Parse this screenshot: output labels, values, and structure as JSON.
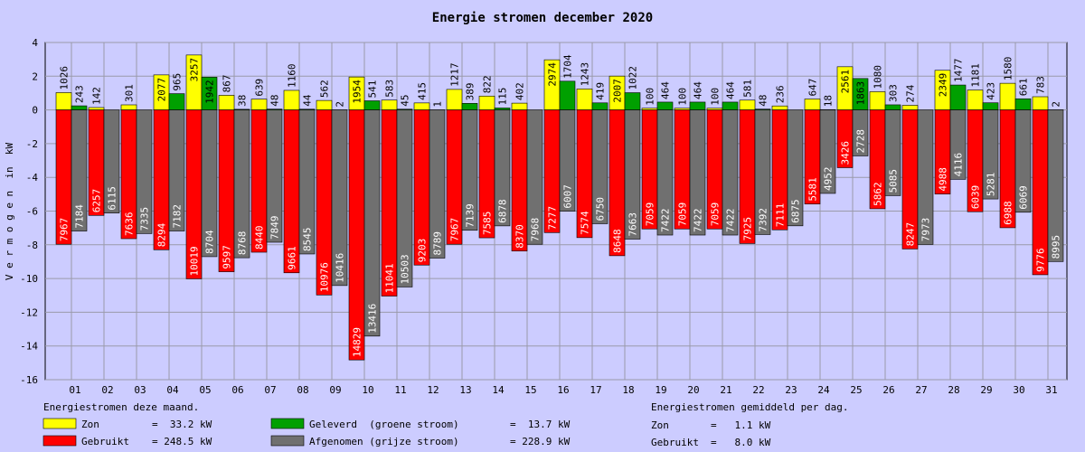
{
  "chart_data": {
    "type": "bar",
    "title": "Energie stromen december 2020",
    "y_label": "V e r m o g e n  in  kW",
    "categories": [
      "01",
      "02",
      "03",
      "04",
      "05",
      "06",
      "07",
      "08",
      "09",
      "10",
      "11",
      "12",
      "13",
      "14",
      "15",
      "16",
      "17",
      "18",
      "19",
      "20",
      "21",
      "22",
      "23",
      "24",
      "25",
      "26",
      "27",
      "28",
      "29",
      "30",
      "31"
    ],
    "series": [
      {
        "name": "Zon",
        "color": "#ffff00",
        "total": "=  33.2 kW",
        "values": [
          1.026,
          0.142,
          0.301,
          2.077,
          3.257,
          0.867,
          0.639,
          1.16,
          0.562,
          1.954,
          0.583,
          0.415,
          1.217,
          0.822,
          0.402,
          2.974,
          1.243,
          2.007,
          0.1,
          0.1,
          0.1,
          0.581,
          0.236,
          0.647,
          2.561,
          1.08,
          0.274,
          2.349,
          1.181,
          1.58,
          0.783
        ],
        "value_labels": [
          "1026",
          "142",
          "301",
          "2077",
          "3257",
          "867",
          "639",
          "1160",
          "562",
          "1954",
          "583",
          "415",
          "1217",
          "822",
          "402",
          "2974",
          "1243",
          "2007",
          "100",
          "100",
          "100",
          "581",
          "236",
          "647",
          "2561",
          "1080",
          "274",
          "2349",
          "1181",
          "1580",
          "783"
        ]
      },
      {
        "name": "Gebruikt",
        "color": "#ff0000",
        "total": "= 248.5 kW",
        "values": [
          -7.967,
          -6.257,
          -7.636,
          -8.294,
          -10.019,
          -9.597,
          -8.44,
          -9.661,
          -10.976,
          -14.829,
          -11.041,
          -9.203,
          -7.967,
          -7.585,
          -8.37,
          -7.277,
          -7.574,
          -8.648,
          -7.059,
          -7.059,
          -7.059,
          -7.925,
          -7.111,
          -5.581,
          -3.426,
          -5.862,
          -8.247,
          -4.988,
          -6.039,
          -6.988,
          -9.776
        ],
        "value_labels": [
          "7967",
          "6257",
          "7636",
          "8294",
          "10019",
          "9597",
          "8440",
          "9661",
          "10976",
          "14829",
          "11041",
          "9203",
          "7967",
          "7585",
          "8370",
          "7277",
          "7574",
          "8648",
          "7059",
          "7059",
          "7059",
          "7925",
          "7111",
          "5581",
          "3426",
          "5862",
          "8247",
          "4988",
          "6039",
          "6988",
          "9776"
        ]
      },
      {
        "name": "Geleverd  (groene stroom)",
        "color": "#00a000",
        "total": "=  13.7 kW",
        "values": [
          0.243,
          0,
          0,
          0.965,
          1.942,
          0.038,
          0.048,
          0.044,
          0.002,
          0.541,
          0.045,
          0.001,
          0.389,
          0.115,
          0,
          1.704,
          0.419,
          1.022,
          0.464,
          0.464,
          0.464,
          0.048,
          0,
          0.018,
          1.863,
          0.303,
          0,
          1.477,
          0.423,
          0.661,
          0.002
        ],
        "value_labels": [
          "243",
          null,
          null,
          "965",
          "1942",
          "38",
          "48",
          "44",
          "2",
          "541",
          "45",
          "1",
          "389",
          "115",
          null,
          "1704",
          "419",
          "1022",
          "464",
          "464",
          "464",
          "48",
          null,
          "18",
          "1863",
          "303",
          null,
          "1477",
          "423",
          "661",
          "2"
        ]
      },
      {
        "name": "Afgenomen (grijze stroom)",
        "color": "#707070",
        "total": "= 228.9 kW",
        "values": [
          -7.184,
          -6.115,
          -7.335,
          -7.182,
          -8.704,
          -8.768,
          -7.849,
          -8.545,
          -10.416,
          -13.416,
          -10.503,
          -8.789,
          -7.139,
          -6.878,
          -7.968,
          -6.007,
          -6.75,
          -7.663,
          -7.422,
          -7.422,
          -7.422,
          -7.392,
          -6.875,
          -4.952,
          -2.728,
          -5.085,
          -7.973,
          -4.116,
          -5.281,
          -6.069,
          -8.995
        ],
        "value_labels": [
          "7184",
          "6115",
          "7335",
          "7182",
          "8704",
          "8768",
          "7849",
          "8545",
          "10416",
          "13416",
          "10503",
          "8789",
          "7139",
          "6878",
          "7968",
          "6007",
          "6750",
          "7663",
          "7422",
          "7422",
          "7422",
          "7392",
          "6875",
          "4952",
          "2728",
          "5085",
          "7973",
          "4116",
          "5281",
          "6069",
          "8995"
        ]
      }
    ],
    "ylim": [
      -16,
      4
    ],
    "yticks": [
      -16,
      -14,
      -12,
      -10,
      -8,
      -6,
      -4,
      -2,
      0,
      2,
      4
    ],
    "grid": true,
    "legend_title": "Energiestromen deze maand.",
    "daily_title": "Energiestromen gemiddeld per dag.",
    "daily": [
      {
        "label": "Zon",
        "value": "=   1.1 kW"
      },
      {
        "label": "Gebruikt",
        "value": "=   8.0 kW"
      }
    ]
  }
}
